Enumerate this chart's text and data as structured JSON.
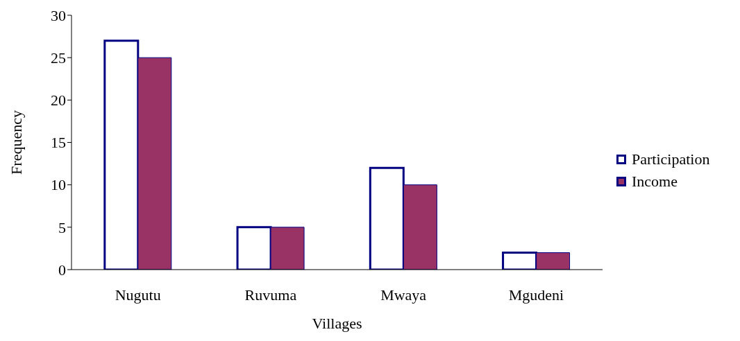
{
  "chart_data": {
    "type": "bar",
    "xlabel": "Villages",
    "ylabel": "Frequency",
    "categories": [
      "Nugutu",
      "Ruvuma",
      "Mwaya",
      "Mgudeni"
    ],
    "series": [
      {
        "name": "Participation",
        "color": "#ffffff",
        "values": [
          27,
          5,
          12,
          2
        ]
      },
      {
        "name": "Income",
        "color": "#993366",
        "values": [
          25,
          5,
          10,
          2
        ]
      }
    ],
    "ylim": [
      0,
      30
    ],
    "yticks": [
      0,
      5,
      10,
      15,
      20,
      25,
      30
    ],
    "grid": false,
    "legend": "right"
  }
}
